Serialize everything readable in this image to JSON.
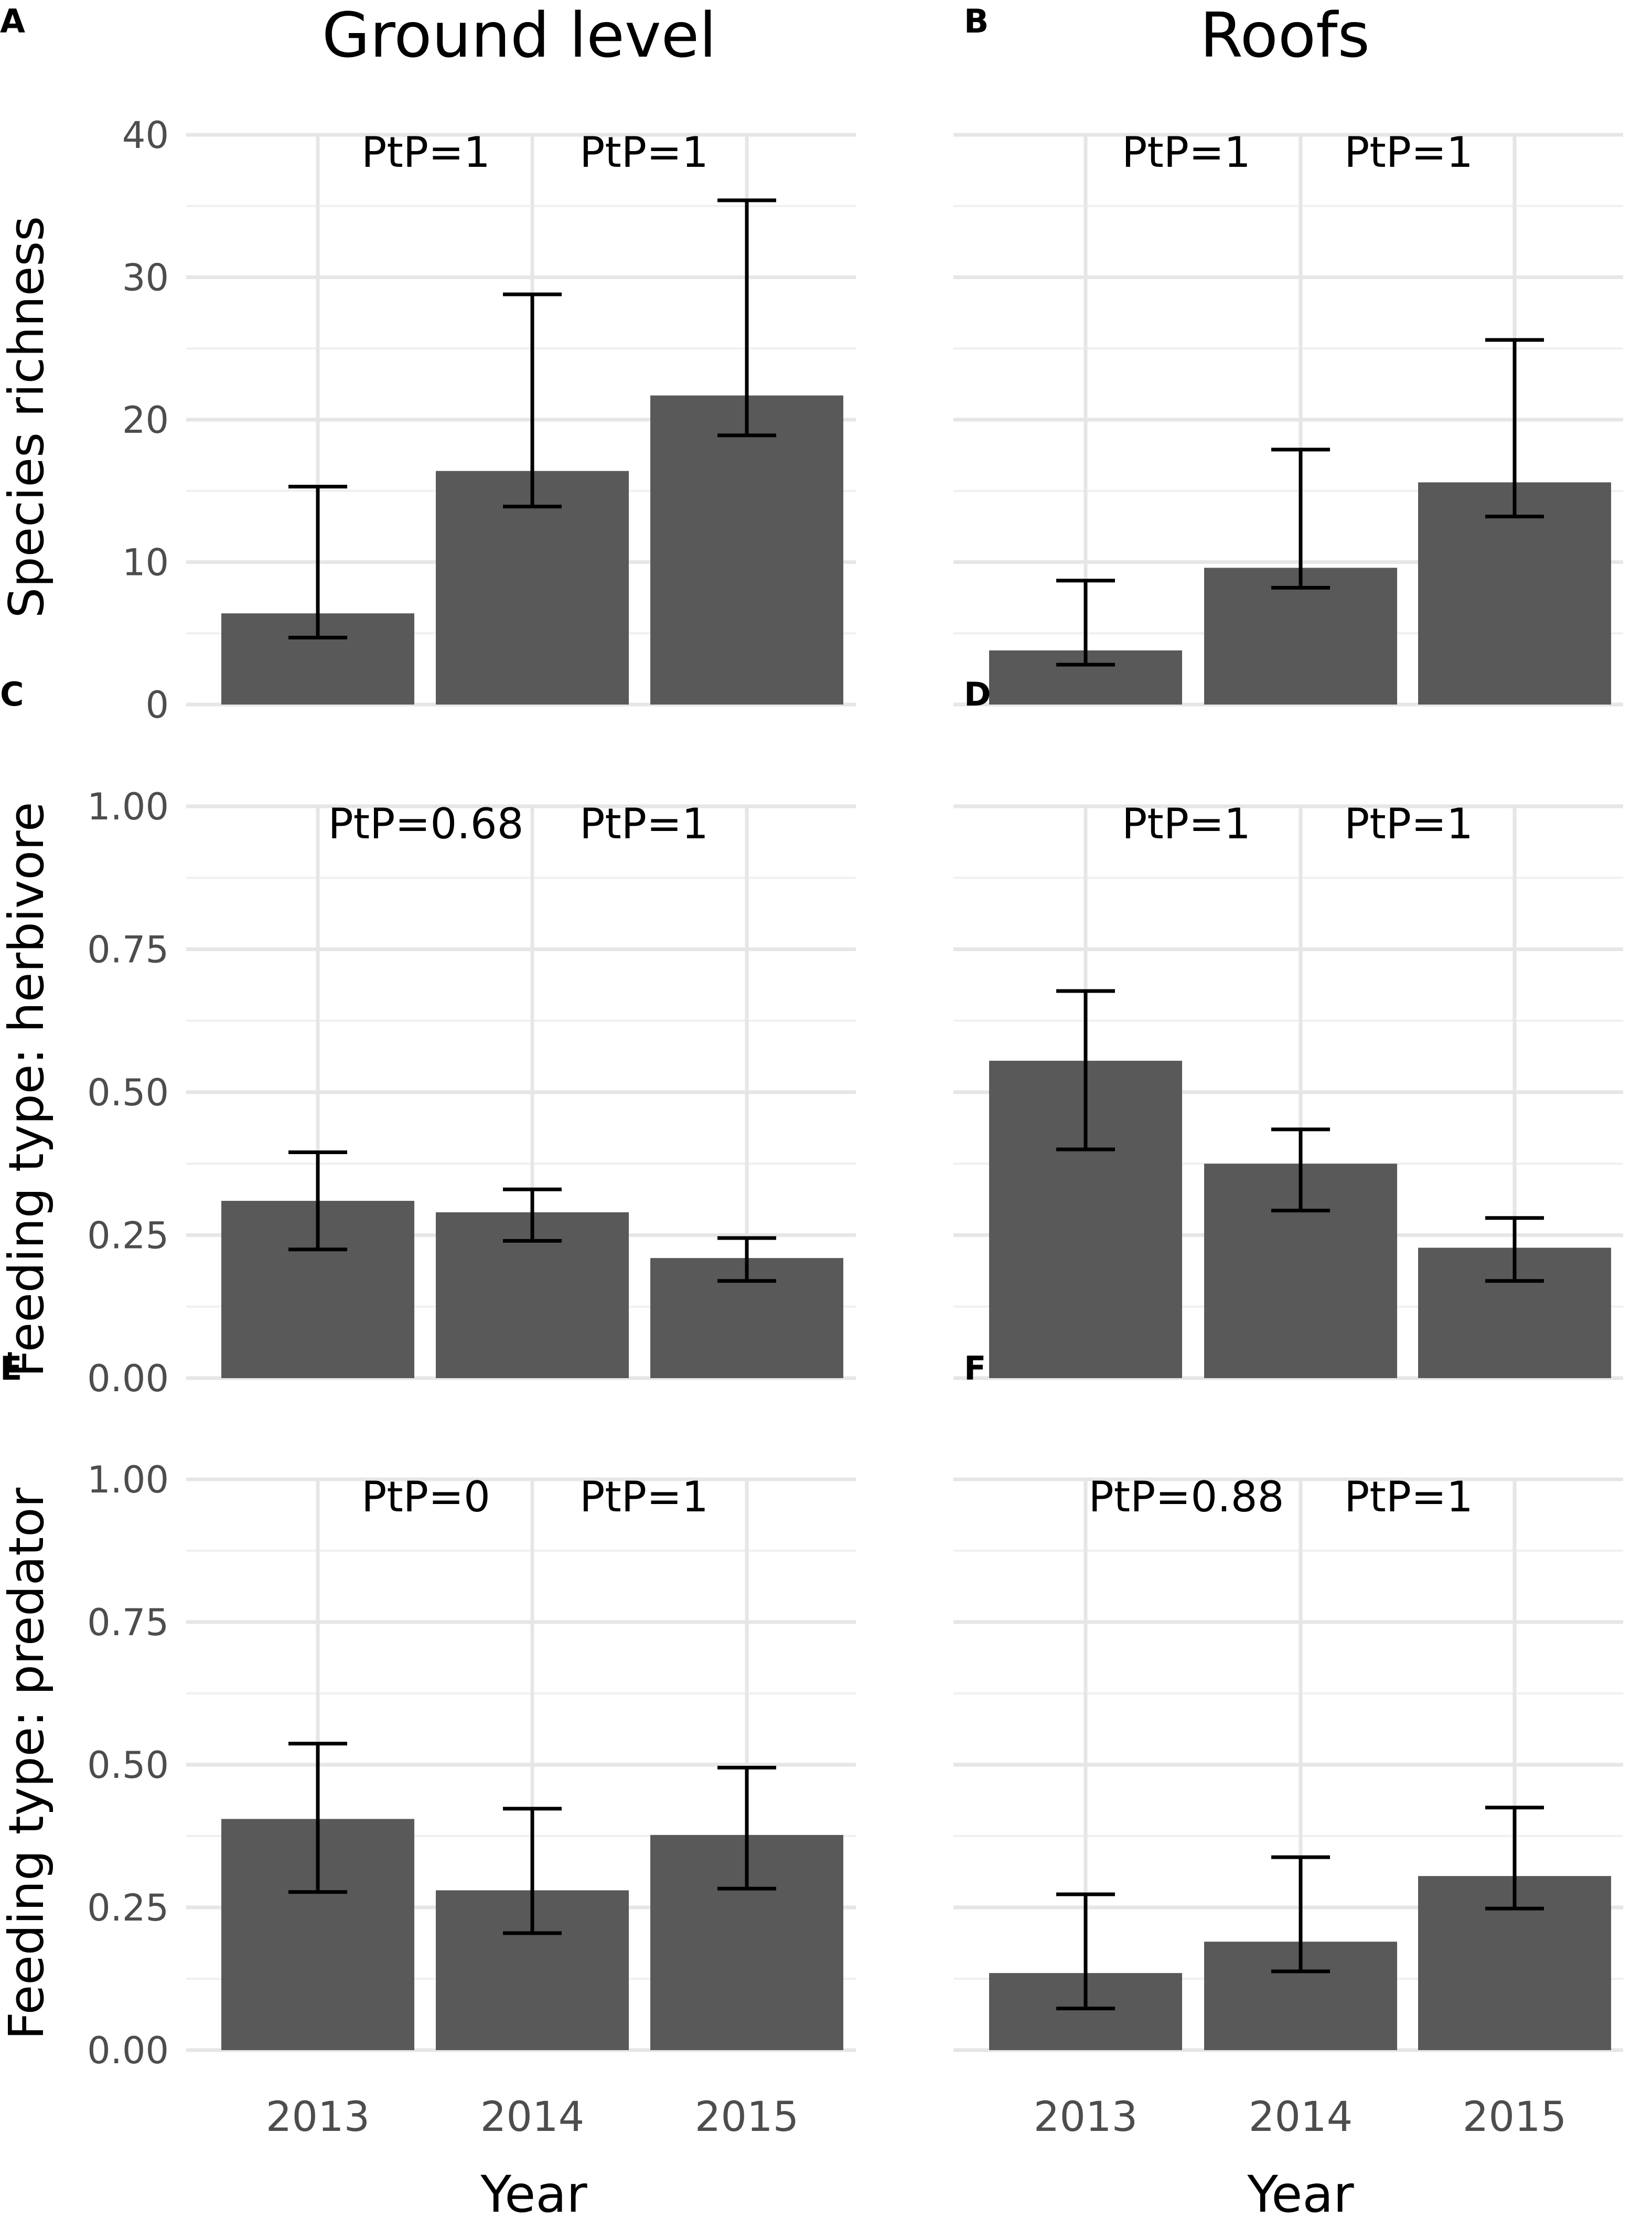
{
  "chart_data": {
    "type": "bar",
    "column_titles": [
      "Ground level",
      "Roofs"
    ],
    "xlabel": "Year",
    "categories": [
      "2013",
      "2014",
      "2015"
    ],
    "bar_color": "#595959",
    "rows": [
      {
        "ylabel": "Species richness",
        "ylim": [
          0,
          40
        ],
        "yticks": [
          "0",
          "10",
          "20",
          "30",
          "40"
        ],
        "ytick_values": [
          0,
          10,
          20,
          30,
          40
        ],
        "panels": [
          {
            "letter": "A",
            "annotations": [
              "PtP=1",
              "PtP=1"
            ],
            "values": [
              6.4,
              16.4,
              21.7
            ],
            "err_low": [
              4.7,
              13.9,
              18.9
            ],
            "err_high": [
              15.3,
              28.8,
              35.4
            ]
          },
          {
            "letter": "B",
            "annotations": [
              "PtP=1",
              "PtP=1"
            ],
            "values": [
              3.8,
              9.6,
              15.6
            ],
            "err_low": [
              2.8,
              8.2,
              13.2
            ],
            "err_high": [
              8.7,
              17.9,
              25.6
            ]
          }
        ]
      },
      {
        "ylabel": "Feeding type: herbivore",
        "ylim": [
          0,
          1
        ],
        "yticks": [
          "0.00",
          "0.25",
          "0.50",
          "0.75",
          "1.00"
        ],
        "ytick_values": [
          0,
          0.25,
          0.5,
          0.75,
          1.0
        ],
        "panels": [
          {
            "letter": "C",
            "annotations": [
              "PtP=0.68",
              "PtP=1"
            ],
            "values": [
              0.31,
              0.29,
              0.21
            ],
            "err_low": [
              0.225,
              0.24,
              0.17
            ],
            "err_high": [
              0.395,
              0.33,
              0.245
            ]
          },
          {
            "letter": "D",
            "annotations": [
              "PtP=1",
              "PtP=1"
            ],
            "values": [
              0.555,
              0.375,
              0.228
            ],
            "err_low": [
              0.4,
              0.293,
              0.17
            ],
            "err_high": [
              0.677,
              0.435,
              0.28
            ]
          }
        ]
      },
      {
        "ylabel": "Feeding type: predator",
        "ylim": [
          0,
          1
        ],
        "yticks": [
          "0.00",
          "0.25",
          "0.50",
          "0.75",
          "1.00"
        ],
        "ytick_values": [
          0,
          0.25,
          0.5,
          0.75,
          1.0
        ],
        "panels": [
          {
            "letter": "E",
            "annotations": [
              "PtP=0",
              "PtP=1"
            ],
            "values": [
              0.405,
              0.28,
              0.377
            ],
            "err_low": [
              0.277,
              0.205,
              0.283
            ],
            "err_high": [
              0.537,
              0.423,
              0.495
            ]
          },
          {
            "letter": "F",
            "annotations": [
              "PtP=0.88",
              "PtP=1"
            ],
            "values": [
              0.135,
              0.19,
              0.305
            ],
            "err_low": [
              0.073,
              0.138,
              0.248
            ],
            "err_high": [
              0.273,
              0.338,
              0.425
            ]
          }
        ]
      }
    ]
  }
}
